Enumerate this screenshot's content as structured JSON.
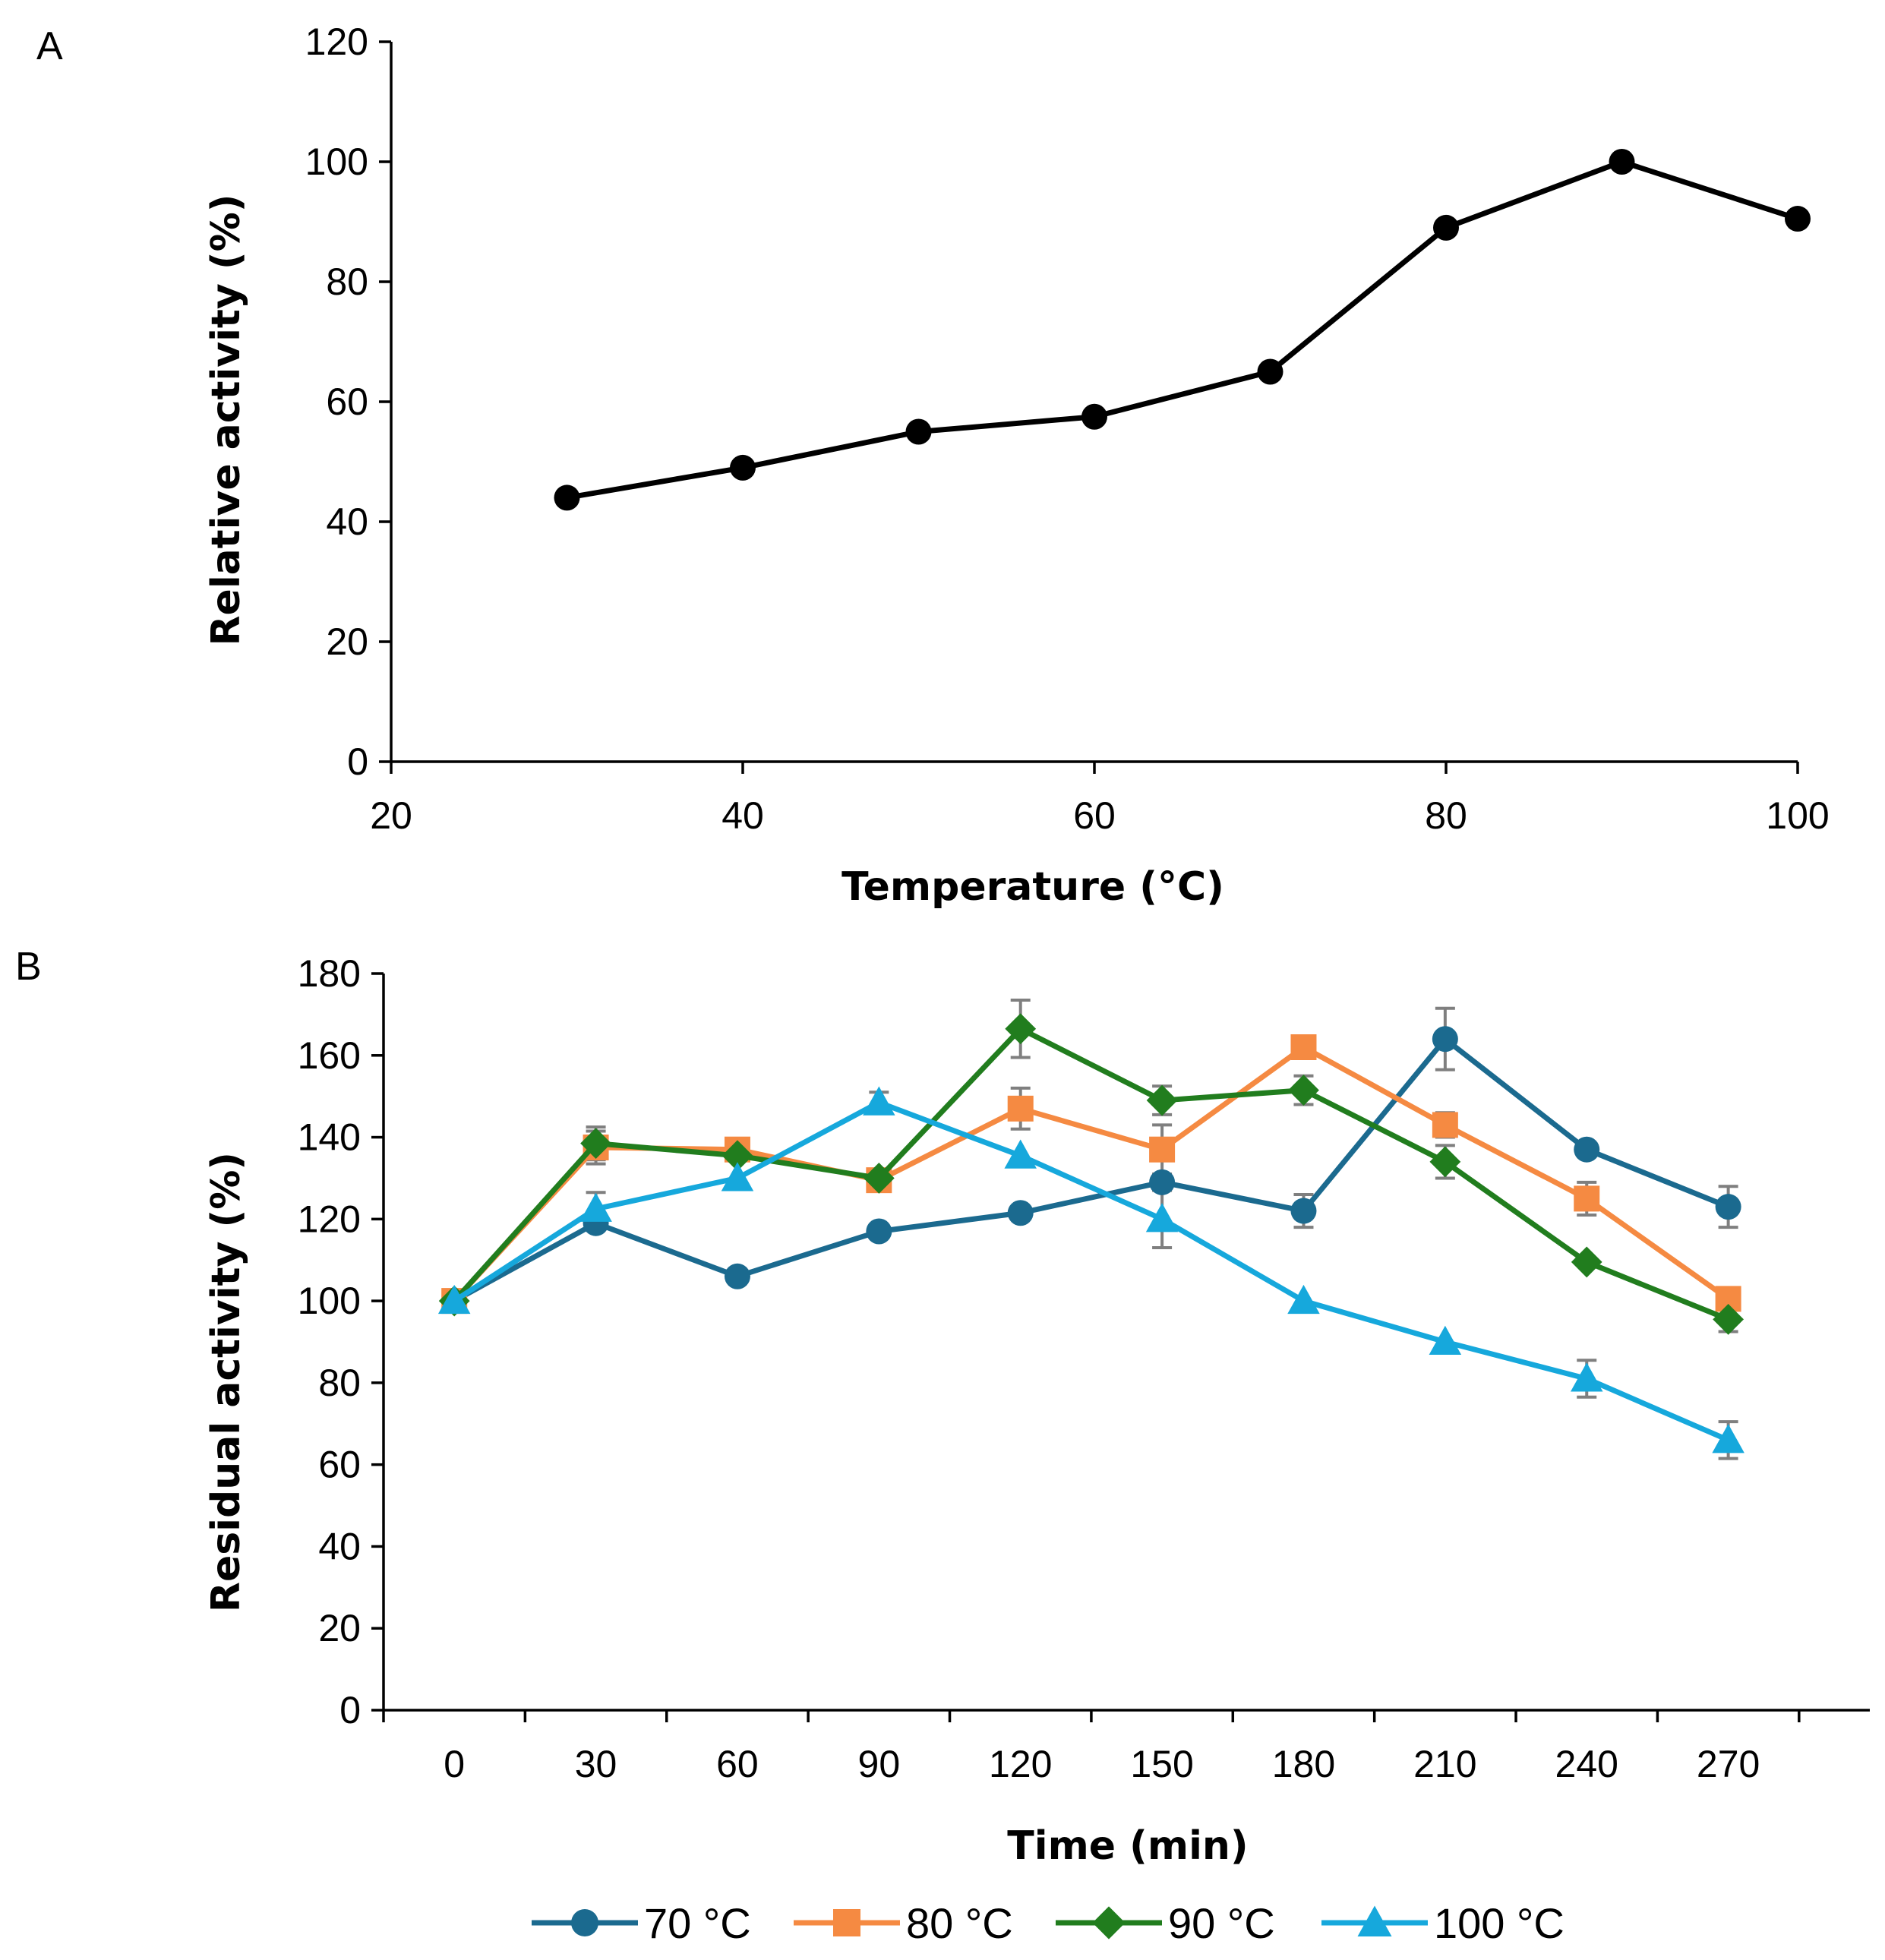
{
  "chart_data": [
    {
      "panel": "A",
      "type": "line",
      "xlabel": "Temperature (°C)",
      "ylabel": "Relative activity (%)",
      "xlim": [
        20,
        100
      ],
      "ylim": [
        0,
        120
      ],
      "x_ticks": [
        20,
        40,
        60,
        80,
        100
      ],
      "y_ticks": [
        0,
        20,
        40,
        60,
        80,
        100,
        120
      ],
      "series": [
        {
          "name": "Relative activity",
          "color": "#000000",
          "marker": "circle",
          "x": [
            30,
            40,
            50,
            60,
            70,
            80,
            90,
            100
          ],
          "y": [
            44,
            49,
            55,
            57.5,
            65,
            89,
            100,
            90.5
          ]
        }
      ]
    },
    {
      "panel": "B",
      "type": "line",
      "xlabel": "Time (min)",
      "ylabel": "Residual activity (%)",
      "categories": [
        "0",
        "30",
        "60",
        "90",
        "120",
        "150",
        "180",
        "210",
        "240",
        "270"
      ],
      "ylim": [
        0,
        180
      ],
      "y_ticks": [
        0,
        20,
        40,
        60,
        80,
        100,
        120,
        140,
        160,
        180
      ],
      "legend_position": "bottom",
      "series": [
        {
          "name": "70 °C",
          "color": "#1b6a8f",
          "marker": "circle",
          "values": [
            100,
            119,
            106,
            117,
            121.5,
            129,
            122,
            164,
            137,
            123
          ],
          "errors": [
            0,
            0,
            0,
            0,
            0,
            0,
            4,
            7.5,
            0,
            5
          ]
        },
        {
          "name": "80 °C",
          "color": "#f58a42",
          "marker": "square",
          "values": [
            100,
            137.5,
            137,
            129.5,
            147,
            137,
            162,
            143,
            125,
            100.5
          ],
          "errors": [
            0,
            4,
            0,
            0,
            5,
            6,
            0,
            3,
            4,
            0
          ]
        },
        {
          "name": "90 °C",
          "color": "#217d1e",
          "marker": "diamond",
          "values": [
            100,
            138.5,
            135.5,
            130,
            166.5,
            149,
            151.5,
            134,
            109.5,
            95.5
          ],
          "errors": [
            0,
            4,
            0,
            0,
            7,
            3.5,
            3.5,
            4,
            0,
            3
          ]
        },
        {
          "name": "100 °C",
          "color": "#16a8dc",
          "marker": "triangle",
          "values": [
            100,
            122.5,
            130,
            148.5,
            135.5,
            120,
            100,
            90,
            81,
            66
          ],
          "errors": [
            0,
            4,
            0,
            2.5,
            0,
            7,
            0,
            0,
            4.5,
            4.5
          ]
        }
      ]
    }
  ],
  "panel_labels": [
    "A",
    "B"
  ]
}
